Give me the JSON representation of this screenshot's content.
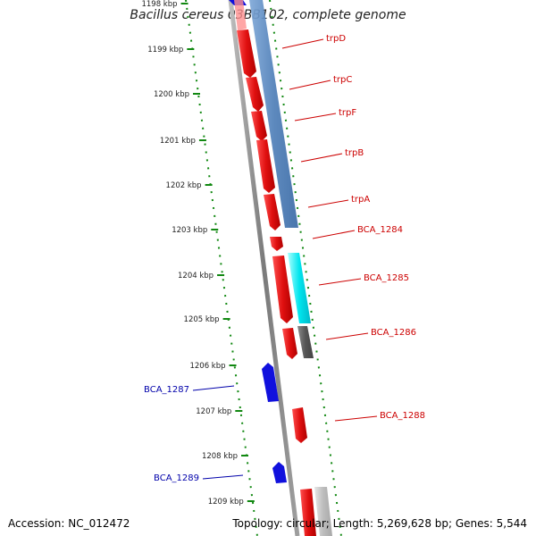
{
  "title": "Bacillus cereus 03BB102, complete genome",
  "accession": "Accession: NC_012472",
  "summary": "Topology: circular; Length: 5,269,628 bp; Genes: 5,544",
  "ruler": [
    {
      "label": "1198 kbp"
    },
    {
      "label": "1199 kbp"
    },
    {
      "label": "1200 kbp"
    },
    {
      "label": "1201 kbp"
    },
    {
      "label": "1202 kbp"
    },
    {
      "label": "1203 kbp"
    },
    {
      "label": "1204 kbp"
    },
    {
      "label": "1205 kbp"
    },
    {
      "label": "1206 kbp"
    },
    {
      "label": "1207 kbp"
    },
    {
      "label": "1208 kbp"
    },
    {
      "label": "1209 kbp"
    }
  ],
  "genes": [
    {
      "name": "trpD",
      "strand": "forward",
      "color": "#e01010"
    },
    {
      "name": "trpC",
      "strand": "forward",
      "color": "#e01010"
    },
    {
      "name": "trpF",
      "strand": "forward",
      "color": "#e01010"
    },
    {
      "name": "trpB",
      "strand": "forward",
      "color": "#e01010"
    },
    {
      "name": "trpA",
      "strand": "forward",
      "color": "#e01010"
    },
    {
      "name": "BCA_1284",
      "strand": "forward",
      "color": "#e01010"
    },
    {
      "name": "BCA_1285",
      "strand": "forward",
      "color": "#e01010"
    },
    {
      "name": "BCA_1286",
      "strand": "forward",
      "color": "#e01010"
    },
    {
      "name": "BCA_1287",
      "strand": "reverse",
      "color": "#1010dd"
    },
    {
      "name": "BCA_1288",
      "strand": "forward",
      "color": "#e01010"
    },
    {
      "name": "BCA_1289",
      "strand": "reverse",
      "color": "#1010dd"
    }
  ],
  "colors": {
    "forward_gene": "#e01010",
    "reverse_gene": "#1010dd",
    "forward_label": "#cc0000",
    "reverse_label": "#0000aa",
    "ruler": "#118811",
    "backbone": "#7a7a7a",
    "operon": "#4f7fb8",
    "cyan_feature": "#00e5ee",
    "gray_feature": "#606060"
  }
}
